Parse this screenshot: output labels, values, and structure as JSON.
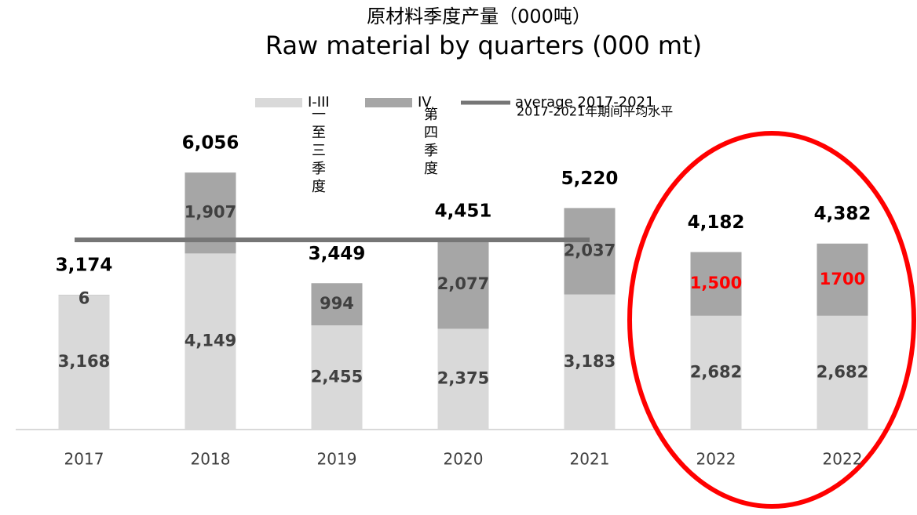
{
  "chart_data": {
    "type": "stacked_bar",
    "title": "原材料季度产量（000吨）",
    "subtitle": "Raw material by quarters (000 mt)",
    "categories": [
      "2017",
      "2018",
      "2019",
      "2020",
      "2021",
      "2022",
      "2022"
    ],
    "series": [
      {
        "name": "I-III",
        "color": "#d9d9d9",
        "values": [
          3168,
          4149,
          2455,
          2375,
          3183,
          2682,
          2682
        ],
        "value_labels": [
          "3,168",
          "4,149",
          "2,455",
          "2,375",
          "3,183",
          "2,682",
          "2,682"
        ],
        "label_colors": [
          "#404040",
          "#404040",
          "#404040",
          "#404040",
          "#404040",
          "#404040",
          "#404040"
        ]
      },
      {
        "name": "IV",
        "color": "#a6a6a6",
        "values": [
          6,
          1907,
          994,
          2077,
          2037,
          1500,
          1700
        ],
        "value_labels": [
          "6",
          "1,907",
          "994",
          "2,077",
          "2,037",
          "1,500",
          "1700"
        ],
        "label_colors": [
          "#404040",
          "#404040",
          "#404040",
          "#404040",
          "#404040",
          "#ff0000",
          "#ff0000"
        ]
      }
    ],
    "totals": {
      "values": [
        3174,
        6056,
        3449,
        4451,
        5220,
        4182,
        4382
      ],
      "value_labels": [
        "3,174",
        "6,056",
        "3,449",
        "4,451",
        "5,220",
        "4,182",
        "4,382"
      ]
    },
    "average": {
      "name": "average 2017-2021",
      "value": 4470,
      "color": "#767676"
    },
    "annotations": [
      "2017-2021年期间平均水平",
      "一至三季度",
      "第四季度"
    ],
    "ylim": [
      0,
      7000
    ]
  }
}
